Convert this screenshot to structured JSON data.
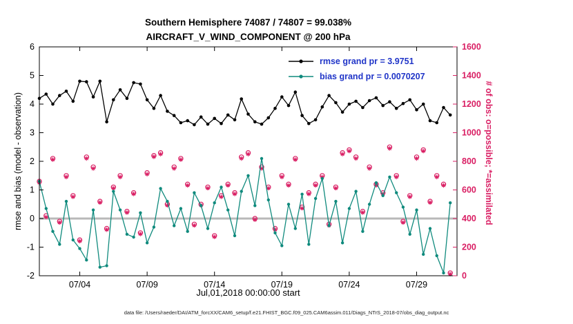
{
  "colors": {
    "rmse": "#000000",
    "bias": "#0f8a7d",
    "obs": "#d91e63",
    "legend_text": "#2035c8",
    "zero_line": "#b8b8b8",
    "axis": "#000000"
  },
  "caption": "data file: /Users/raeder/DAI/ATM_forcXX/CAM6_setup/f.e21.FHIST_BGC.f09_025.CAM6assim.011/Diags_NTrS_2018-07/obs_diag_output.nc",
  "chart_data": {
    "type": "line+scatter",
    "title_line1": "Southern Hemisphere 74087 / 74807 = 99.038%",
    "title_line2": "AIRCRAFT_V_WIND_COMPONENT @ 200 hPa",
    "x_label": "Jul,01,2018 00:00:00 start",
    "legend": {
      "rmse_label": "rmse grand pr = 3.9751",
      "bias_label": "bias grand pr = 0.0070207"
    },
    "stats": {
      "rmse_grand": 3.9751,
      "bias_grand": 0.0070207,
      "possible_total": 74807,
      "assimilated_total": 74087,
      "percent_assimilated": 99.038
    },
    "x_range": [
      1,
      32
    ],
    "x_start_day": 1,
    "x_step_days": 0.5,
    "x_ticks": [
      {
        "day": 4,
        "label": "07/04"
      },
      {
        "day": 9,
        "label": "07/09"
      },
      {
        "day": 14,
        "label": "07/14"
      },
      {
        "day": 19,
        "label": "07/19"
      },
      {
        "day": 24,
        "label": "07/24"
      },
      {
        "day": 29,
        "label": "07/29"
      }
    ],
    "y_left": {
      "label": "rmse and bias (model - observation)",
      "range": [
        -2,
        6
      ],
      "ticks": [
        -2,
        -1,
        0,
        1,
        2,
        3,
        4,
        5,
        6
      ]
    },
    "y_right": {
      "label": "# of obs: o=possible; *=assimilated",
      "range": [
        0,
        1600
      ],
      "ticks": [
        0,
        200,
        400,
        600,
        800,
        1000,
        1200,
        1400,
        1600
      ]
    },
    "grid": false,
    "legend_position": "top-inside",
    "series": [
      {
        "name": "rmse",
        "axis": "left",
        "color": "#000000",
        "marker": "dot",
        "values": [
          4.2,
          4.35,
          4.0,
          4.3,
          4.45,
          4.1,
          4.8,
          4.78,
          4.25,
          4.8,
          3.38,
          4.15,
          4.5,
          4.2,
          4.75,
          4.7,
          4.15,
          3.85,
          4.3,
          3.75,
          3.6,
          3.35,
          3.42,
          3.28,
          3.55,
          3.3,
          3.5,
          3.32,
          3.62,
          3.45,
          4.18,
          3.65,
          3.38,
          3.3,
          3.52,
          3.85,
          4.25,
          3.95,
          4.42,
          3.6,
          3.32,
          3.45,
          3.9,
          4.3,
          4.05,
          3.72,
          4.0,
          4.1,
          3.88,
          4.12,
          4.22,
          3.95,
          4.08,
          3.85,
          4.02,
          4.15,
          3.8,
          4.0,
          3.42,
          3.35,
          3.88,
          3.62
        ]
      },
      {
        "name": "bias",
        "axis": "left",
        "color": "#0f8a7d",
        "marker": "dot",
        "values": [
          1.3,
          0.35,
          -0.45,
          -0.9,
          0.6,
          -0.75,
          -1.05,
          -1.45,
          0.3,
          -1.7,
          -1.65,
          0.95,
          0.3,
          -0.55,
          -0.65,
          0.2,
          -0.85,
          -0.3,
          1.05,
          0.6,
          -0.25,
          0.35,
          -0.45,
          0.9,
          0.45,
          -0.35,
          0.55,
          1.1,
          0.3,
          -0.6,
          0.95,
          1.5,
          0.45,
          2.1,
          0.65,
          -0.5,
          -0.95,
          0.5,
          -0.35,
          0.85,
          -0.9,
          0.7,
          1.4,
          -0.25,
          0.6,
          -0.85,
          0.35,
          0.95,
          -0.45,
          0.5,
          1.25,
          0.8,
          1.45,
          0.9,
          0.4,
          -0.55,
          0.3,
          -1.25,
          -0.35,
          -1.3,
          -1.9,
          0.55
        ]
      },
      {
        "name": "possible",
        "axis": "right",
        "color": "#d91e63",
        "marker": "circle",
        "values": [
          660,
          420,
          820,
          380,
          700,
          560,
          250,
          830,
          760,
          520,
          330,
          620,
          700,
          450,
          580,
          300,
          720,
          840,
          860,
          500,
          760,
          820,
          640,
          360,
          500,
          620,
          280,
          560,
          640,
          580,
          830,
          860,
          400,
          760,
          620,
          330,
          700,
          640,
          820,
          480,
          580,
          640,
          700,
          360,
          620,
          860,
          880,
          830,
          450,
          760,
          640,
          580,
          900,
          700,
          380,
          560,
          830,
          880,
          520,
          700,
          640,
          20
        ]
      },
      {
        "name": "assimilated",
        "axis": "right",
        "color": "#d91e63",
        "marker": "asterisk",
        "values": [
          650,
          410,
          812,
          372,
          690,
          552,
          242,
          820,
          750,
          512,
          322,
          612,
          690,
          442,
          572,
          292,
          710,
          832,
          850,
          492,
          750,
          812,
          632,
          352,
          492,
          612,
          272,
          552,
          632,
          572,
          820,
          850,
          392,
          750,
          612,
          322,
          690,
          632,
          812,
          472,
          572,
          632,
          690,
          352,
          612,
          850,
          872,
          820,
          442,
          750,
          632,
          572,
          890,
          690,
          372,
          552,
          820,
          872,
          512,
          690,
          632,
          12
        ]
      }
    ]
  }
}
